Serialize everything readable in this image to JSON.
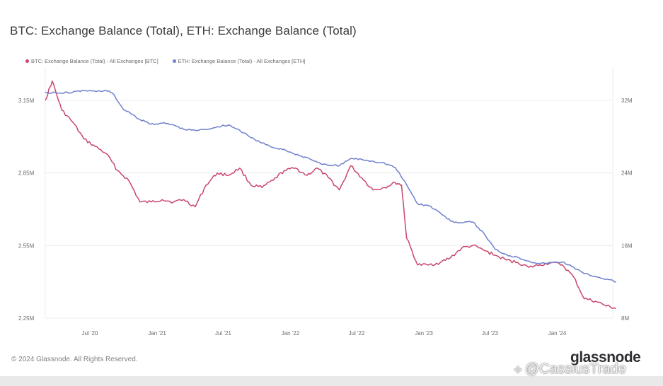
{
  "title": "BTC: Exchange Balance (Total), ETH: Exchange Balance (Total)",
  "footer": "© 2024 Glassnode. All Rights Reserved.",
  "brand": "glassnode",
  "watermark": "@CassiusTrade",
  "colors": {
    "btc": "#c9456b",
    "eth": "#6f7fce",
    "grid": "#ececee",
    "axis": "#6b6b70"
  },
  "chart_data": {
    "type": "line",
    "title": "BTC: Exchange Balance (Total), ETH: Exchange Balance (Total)",
    "legend_position": "top-left",
    "grid": true,
    "x_ticks": [
      "Jul '20",
      "Jan '21",
      "Jul '21",
      "Jan '22",
      "Jul '22",
      "Jan '23",
      "Jul '23",
      "Jan '24"
    ],
    "x_range": [
      "2020-03",
      "2024-06"
    ],
    "y_left": {
      "ticks": [
        "2.25M",
        "2.55M",
        "2.85M",
        "3.15M"
      ],
      "range": [
        2250000,
        3150000
      ]
    },
    "y_right": {
      "ticks": [
        "8M",
        "16M",
        "24M",
        "32M"
      ],
      "range": [
        8000000,
        32000000
      ]
    },
    "series": [
      {
        "name": "BTC: Exchange Balance (Total) - All Exchanges [BTC]",
        "axis": "left",
        "color": "#c9456b",
        "points": [
          [
            "2020-03-01",
            3150000
          ],
          [
            "2020-03-20",
            3230000
          ],
          [
            "2020-04-15",
            3110000
          ],
          [
            "2020-05-15",
            3060000
          ],
          [
            "2020-06-15",
            2990000
          ],
          [
            "2020-07-15",
            2960000
          ],
          [
            "2020-08-15",
            2930000
          ],
          [
            "2020-09-15",
            2860000
          ],
          [
            "2020-10-15",
            2820000
          ],
          [
            "2020-11-15",
            2730000
          ],
          [
            "2020-12-15",
            2730000
          ],
          [
            "2021-01-15",
            2740000
          ],
          [
            "2021-02-15",
            2730000
          ],
          [
            "2021-03-15",
            2740000
          ],
          [
            "2021-04-15",
            2710000
          ],
          [
            "2021-05-15",
            2800000
          ],
          [
            "2021-06-15",
            2850000
          ],
          [
            "2021-07-15",
            2840000
          ],
          [
            "2021-08-15",
            2870000
          ],
          [
            "2021-09-15",
            2800000
          ],
          [
            "2021-10-15",
            2790000
          ],
          [
            "2021-11-15",
            2820000
          ],
          [
            "2021-12-15",
            2860000
          ],
          [
            "2022-01-15",
            2870000
          ],
          [
            "2022-02-15",
            2840000
          ],
          [
            "2022-03-15",
            2870000
          ],
          [
            "2022-04-15",
            2830000
          ],
          [
            "2022-05-15",
            2780000
          ],
          [
            "2022-06-15",
            2880000
          ],
          [
            "2022-07-15",
            2830000
          ],
          [
            "2022-08-15",
            2780000
          ],
          [
            "2022-09-15",
            2790000
          ],
          [
            "2022-10-15",
            2810000
          ],
          [
            "2022-11-01",
            2800000
          ],
          [
            "2022-11-15",
            2580000
          ],
          [
            "2022-12-15",
            2470000
          ],
          [
            "2023-01-15",
            2470000
          ],
          [
            "2023-02-15",
            2480000
          ],
          [
            "2023-03-15",
            2500000
          ],
          [
            "2023-04-15",
            2540000
          ],
          [
            "2023-05-15",
            2550000
          ],
          [
            "2023-06-15",
            2530000
          ],
          [
            "2023-07-15",
            2510000
          ],
          [
            "2023-08-15",
            2490000
          ],
          [
            "2023-09-15",
            2480000
          ],
          [
            "2023-10-15",
            2460000
          ],
          [
            "2023-11-15",
            2470000
          ],
          [
            "2023-12-15",
            2480000
          ],
          [
            "2024-01-15",
            2470000
          ],
          [
            "2024-02-15",
            2420000
          ],
          [
            "2024-03-15",
            2330000
          ],
          [
            "2024-04-15",
            2320000
          ],
          [
            "2024-05-15",
            2300000
          ],
          [
            "2024-06-10",
            2290000
          ]
        ]
      },
      {
        "name": "ETH: Exchange Balance (Total) - All Exchanges [ETH]",
        "axis": "right",
        "color": "#6f7fce",
        "points": [
          [
            "2020-03-01",
            32900000
          ],
          [
            "2020-04-15",
            32800000
          ],
          [
            "2020-05-15",
            32900000
          ],
          [
            "2020-06-15",
            33100000
          ],
          [
            "2020-07-15",
            33000000
          ],
          [
            "2020-08-15",
            33100000
          ],
          [
            "2020-09-01",
            32800000
          ],
          [
            "2020-10-01",
            31000000
          ],
          [
            "2020-11-15",
            29900000
          ],
          [
            "2020-12-15",
            29400000
          ],
          [
            "2021-01-15",
            29500000
          ],
          [
            "2021-02-15",
            29300000
          ],
          [
            "2021-03-15",
            28800000
          ],
          [
            "2021-04-15",
            28700000
          ],
          [
            "2021-05-15",
            28800000
          ],
          [
            "2021-06-15",
            29100000
          ],
          [
            "2021-07-15",
            29300000
          ],
          [
            "2021-08-15",
            28700000
          ],
          [
            "2021-09-15",
            27900000
          ],
          [
            "2021-10-15",
            27300000
          ],
          [
            "2021-11-15",
            26800000
          ],
          [
            "2021-12-15",
            26600000
          ],
          [
            "2022-01-15",
            26000000
          ],
          [
            "2022-02-15",
            25700000
          ],
          [
            "2022-03-15",
            25200000
          ],
          [
            "2022-04-15",
            24800000
          ],
          [
            "2022-05-15",
            24800000
          ],
          [
            "2022-06-15",
            25600000
          ],
          [
            "2022-07-15",
            25500000
          ],
          [
            "2022-08-15",
            25300000
          ],
          [
            "2022-09-15",
            25100000
          ],
          [
            "2022-10-15",
            24600000
          ],
          [
            "2022-11-15",
            22700000
          ],
          [
            "2022-12-15",
            20600000
          ],
          [
            "2023-01-15",
            20400000
          ],
          [
            "2023-02-15",
            19600000
          ],
          [
            "2023-03-15",
            18700000
          ],
          [
            "2023-04-15",
            18500000
          ],
          [
            "2023-05-15",
            18600000
          ],
          [
            "2023-06-15",
            17300000
          ],
          [
            "2023-07-15",
            15600000
          ],
          [
            "2023-08-15",
            15000000
          ],
          [
            "2023-09-15",
            14700000
          ],
          [
            "2023-10-15",
            14300000
          ],
          [
            "2023-11-15",
            14000000
          ],
          [
            "2023-12-15",
            14100000
          ],
          [
            "2024-01-15",
            14200000
          ],
          [
            "2024-02-15",
            13600000
          ],
          [
            "2024-03-15",
            12900000
          ],
          [
            "2024-04-15",
            12600000
          ],
          [
            "2024-05-15",
            12300000
          ],
          [
            "2024-06-10",
            12000000
          ]
        ]
      }
    ]
  }
}
